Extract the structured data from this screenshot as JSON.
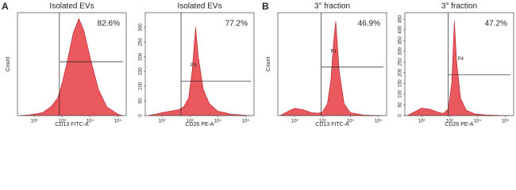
{
  "chart_data": [
    {
      "type": "area",
      "panel_label": "A",
      "title": "Isolated EVs",
      "x_label": "CD13 FITC-A",
      "y_label": "Count",
      "log_x": true,
      "xlim": [
        25,
        200000
      ],
      "ylim": [
        0,
        350
      ],
      "xticks": [
        {
          "value": 100,
          "label": "10²"
        },
        {
          "value": 1000,
          "label": "10³"
        },
        {
          "value": 10000,
          "label": "10⁴"
        },
        {
          "value": 100000,
          "label": "10⁵"
        }
      ],
      "x": [
        30,
        60,
        100,
        200,
        400,
        700,
        1000,
        1500,
        2500,
        4000,
        6000,
        10000,
        20000,
        40000,
        100000,
        150000
      ],
      "values": [
        0,
        2,
        5,
        10,
        30,
        60,
        110,
        180,
        280,
        330,
        290,
        200,
        90,
        30,
        5,
        0
      ],
      "color": "#e8474b",
      "gate": [
        800,
        183
      ],
      "gate_percent": "82.6%"
    },
    {
      "type": "area",
      "title": "Isolated EVs",
      "x_label": "CD26 PE-A",
      "log_x": true,
      "xlim": [
        25,
        200000
      ],
      "ylim": [
        0,
        350
      ],
      "xticks": [
        {
          "value": 100,
          "label": "10²"
        },
        {
          "value": 1000,
          "label": "10³"
        },
        {
          "value": 10000,
          "label": "10⁴"
        },
        {
          "value": 100000,
          "label": "10⁵"
        }
      ],
      "yticks": [
        0,
        50,
        100,
        150,
        200,
        250,
        300
      ],
      "x": [
        30,
        60,
        100,
        200,
        400,
        600,
        900,
        1200,
        1600,
        2000,
        3000,
        5000,
        10000,
        30000,
        100000,
        150000
      ],
      "values": [
        0,
        5,
        10,
        15,
        20,
        30,
        60,
        150,
        300,
        200,
        90,
        40,
        15,
        5,
        1,
        0
      ],
      "color": "#e8474b",
      "gate": [
        480,
        117
      ],
      "gate_percent": "77.2%",
      "gate_label": "P3"
    },
    {
      "type": "area",
      "panel_label": "B",
      "title": "3° fraction",
      "x_label": "CD13 FITC-A",
      "y_label": "Count",
      "log_x": true,
      "xlim": [
        25,
        200000
      ],
      "ylim": [
        0,
        350
      ],
      "xticks": [
        {
          "value": 100,
          "label": "10²"
        },
        {
          "value": 1000,
          "label": "10³"
        },
        {
          "value": 10000,
          "label": "10⁴"
        },
        {
          "value": 100000,
          "label": "10⁵"
        }
      ],
      "x": [
        30,
        60,
        100,
        200,
        400,
        700,
        1000,
        1500,
        2000,
        2500,
        3000,
        4000,
        6000,
        10000,
        30000,
        150000
      ],
      "values": [
        0,
        15,
        25,
        20,
        10,
        8,
        12,
        40,
        120,
        250,
        320,
        150,
        40,
        10,
        2,
        0
      ],
      "color": "#e8474b",
      "gate": [
        900,
        165
      ],
      "gate_percent": "46.9%",
      "gate_label": "P1"
    },
    {
      "type": "area",
      "title": "3° fraction",
      "x_label": "CD26 PE-A",
      "log_x": true,
      "xlim": [
        25,
        200000
      ],
      "ylim": [
        0,
        480
      ],
      "xticks": [
        {
          "value": 100,
          "label": "10²"
        },
        {
          "value": 1000,
          "label": "10³"
        },
        {
          "value": 10000,
          "label": "10⁴"
        },
        {
          "value": 100000,
          "label": "10⁵"
        }
      ],
      "yticks": [
        0,
        50,
        100,
        150,
        200,
        250,
        300,
        350,
        400,
        450
      ],
      "x": [
        30,
        60,
        100,
        200,
        400,
        600,
        900,
        1200,
        1500,
        1800,
        2500,
        4000,
        8000,
        20000,
        60000,
        150000
      ],
      "values": [
        0,
        20,
        35,
        30,
        15,
        10,
        30,
        150,
        440,
        250,
        80,
        25,
        8,
        3,
        1,
        0
      ],
      "color": "#e8474b",
      "gate": [
        900,
        190
      ],
      "gate_percent": "47.2%",
      "gate_label": "P4"
    }
  ]
}
